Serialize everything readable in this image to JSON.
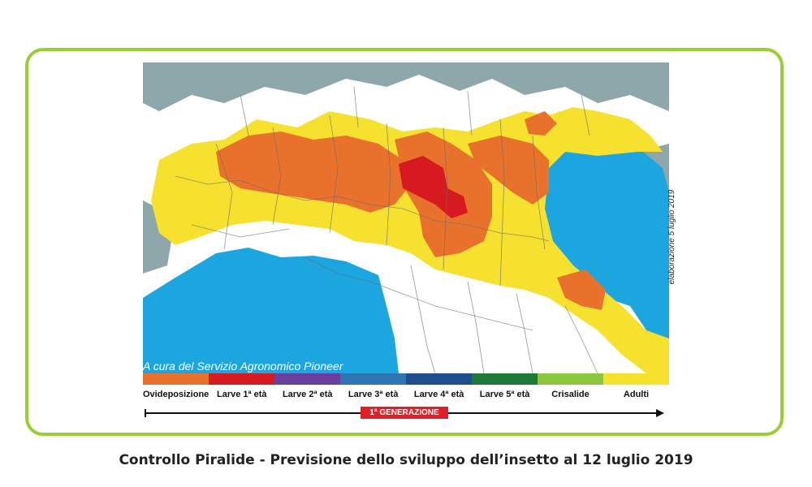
{
  "map": {
    "credit": "A cura del Servizio Agronomico Pioneer",
    "elaboration_note": "elaborazione 5 luglio 2019",
    "colors": {
      "sea": "#1ca6df",
      "outside": "#8ea7ab",
      "land": "#ffffff",
      "borders": "#6b6b6b"
    }
  },
  "legend": {
    "items": [
      {
        "label": "Ovideposizione",
        "color": "#e8712b"
      },
      {
        "label": "Larve 1ª età",
        "color": "#d71920"
      },
      {
        "label": "Larve 2ª età",
        "color": "#6b3fa0"
      },
      {
        "label": "Larve 3ª età",
        "color": "#2e75b6"
      },
      {
        "label": "Larve 4ª età",
        "color": "#1f4e8c"
      },
      {
        "label": "Larve 5ª età",
        "color": "#1f7a3a"
      },
      {
        "label": "Crisalide",
        "color": "#8cc63f"
      },
      {
        "label": "Adulti",
        "color": "#f5e12e"
      }
    ],
    "generation_label": "1ª GENERAZIONE"
  },
  "caption": "Controllo Piralide - Previsione dello sviluppo dell’insetto al 12 luglio 2019"
}
